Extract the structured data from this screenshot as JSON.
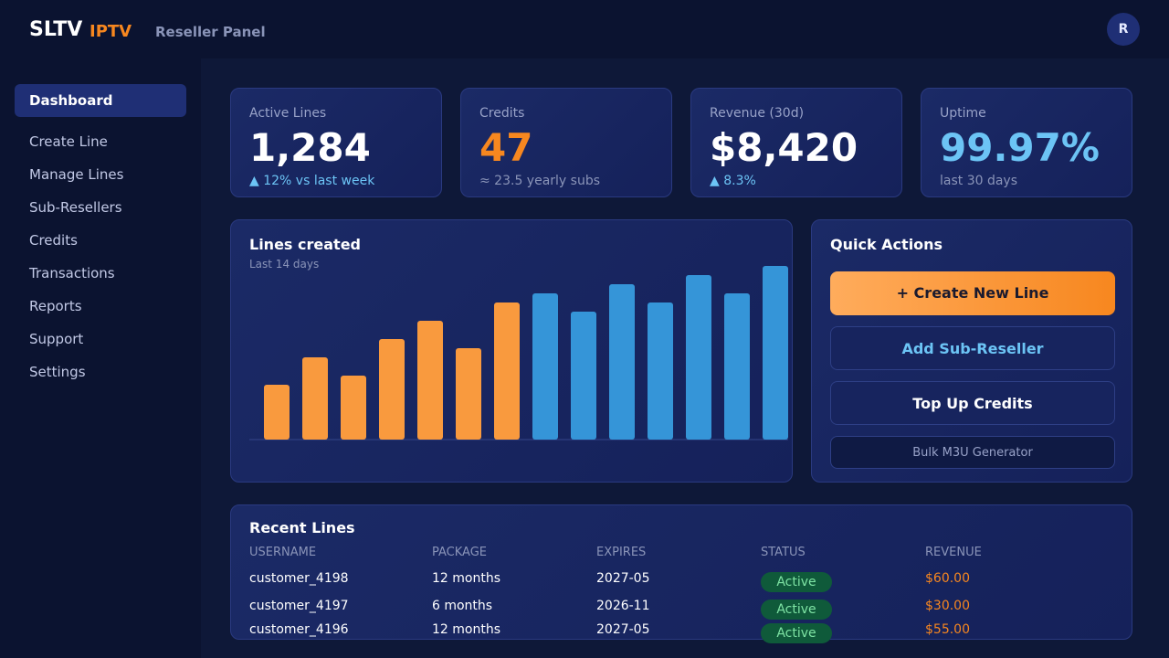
{
  "header": {
    "brand": "SLTV",
    "brand_accent": "IPTV",
    "subtitle": "Reseller Panel",
    "avatar": "R"
  },
  "nav": {
    "active": 0,
    "items": [
      "Dashboard",
      "Create Line",
      "Manage Lines",
      "Sub-Resellers",
      "Credits",
      "Transactions",
      "Reports",
      "Support",
      "Settings"
    ]
  },
  "stats": [
    {
      "label": "Active Lines",
      "value": "1,284",
      "note": "▲ 12% vs last week",
      "color": "#ffffff",
      "note_color": "#6cc4f5"
    },
    {
      "label": "Credits",
      "value": "47",
      "note": "≈ 23.5 yearly subs",
      "color": "#f7871f",
      "note_color": "#8a94b8"
    },
    {
      "label": "Revenue (30d)",
      "value": "$8,420",
      "note": "▲ 8.3%",
      "color": "#ffffff",
      "note_color": "#6cc4f5"
    },
    {
      "label": "Uptime",
      "value": "99.97%",
      "note": "last 30 days",
      "color": "#6cc4f5",
      "note_color": "#8a94b8"
    }
  ],
  "chart_data": {
    "type": "bar",
    "title": "Lines created",
    "subtitle": "Last 14 days",
    "categories": [
      null,
      null,
      null,
      null,
      null,
      null,
      null,
      null,
      null,
      null,
      null,
      null,
      null,
      null
    ],
    "values": [
      60,
      90,
      70,
      110,
      130,
      100,
      150,
      160,
      140,
      170,
      150,
      180,
      160,
      190
    ],
    "colors": [
      "#f99a3e",
      "#f99a3e",
      "#f99a3e",
      "#f99a3e",
      "#f99a3e",
      "#f99a3e",
      "#f99a3e",
      "#3595d8",
      "#3595d8",
      "#3595d8",
      "#3595d8",
      "#3595d8",
      "#3595d8",
      "#3595d8"
    ],
    "ylim": [
      0,
      200
    ]
  },
  "quick_actions": {
    "title": "Quick Actions",
    "buttons": [
      "+ Create New Line",
      "Add Sub-Reseller",
      "Top Up Credits",
      "Bulk M3U Generator"
    ]
  },
  "recent": {
    "title": "Recent Lines",
    "columns": [
      "USERNAME",
      "PACKAGE",
      "EXPIRES",
      "STATUS",
      "REVENUE"
    ],
    "rows": [
      [
        "customer_4198",
        "12 months",
        "2027-05",
        "Active",
        "$60.00"
      ],
      [
        "customer_4197",
        "6 months",
        "2026-11",
        "Active",
        "$30.00"
      ],
      [
        "customer_4196",
        "12 months",
        "2027-05",
        "Active",
        "$55.00"
      ]
    ]
  }
}
